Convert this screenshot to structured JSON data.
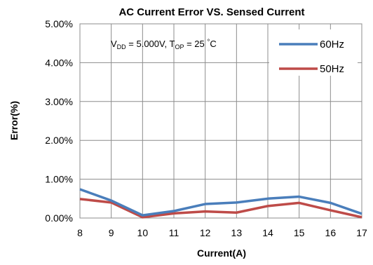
{
  "chart_data": {
    "type": "line",
    "title": "AC Current Error VS. Sensed Current",
    "xlabel": "Current(A)",
    "ylabel": "Error(%)",
    "x": [
      8,
      9,
      10,
      11,
      12,
      13,
      14,
      15,
      16,
      17
    ],
    "ylim": [
      0,
      5
    ],
    "yticks": [
      0,
      1,
      2,
      3,
      4,
      5
    ],
    "ytick_labels": [
      "0.00%",
      "1.00%",
      "2.00%",
      "3.00%",
      "4.00%",
      "5.00%"
    ],
    "grid": true,
    "legend_position": "top-right",
    "annotation": {
      "vdd_label": "V",
      "vdd_sub": "DD",
      "vdd_value": " = 5.000V, ",
      "top_label": "T",
      "top_sub": "OP",
      "top_value": " = 25 ",
      "degree": "°",
      "unit": "C"
    },
    "series": [
      {
        "name": "60Hz",
        "color": "#4a7ebb",
        "values": [
          0.74,
          0.45,
          0.07,
          0.18,
          0.36,
          0.4,
          0.5,
          0.55,
          0.39,
          0.11
        ]
      },
      {
        "name": "50Hz",
        "color": "#be4b48",
        "values": [
          0.49,
          0.4,
          0.02,
          0.12,
          0.17,
          0.14,
          0.31,
          0.39,
          0.2,
          0.02
        ]
      }
    ]
  }
}
